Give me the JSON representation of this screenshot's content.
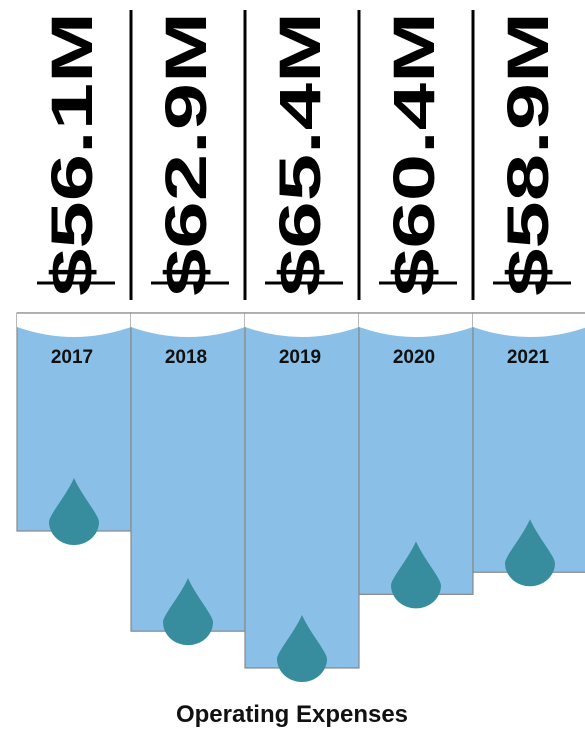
{
  "chart_data": {
    "type": "bar",
    "title": "Operating Expenses",
    "categories": [
      "2017",
      "2018",
      "2019",
      "2020",
      "2021"
    ],
    "values": [
      56.1,
      62.9,
      65.4,
      60.4,
      58.9
    ],
    "value_labels": [
      "$56.1M",
      "$62.9M",
      "$65.4M",
      "$60.4M",
      "$58.9M"
    ],
    "color": "#8ac0e8"
  }
}
